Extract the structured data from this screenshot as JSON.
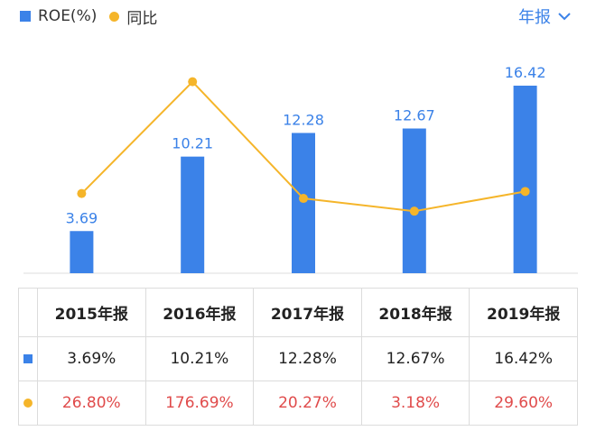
{
  "legend": {
    "roe_label": "ROE(%)",
    "yoy_label": "同比"
  },
  "period_selector": {
    "label": "年报",
    "icon": "chevron-down-icon"
  },
  "colors": {
    "bar": "#3b82e8",
    "line": "#f5b52a",
    "label": "#3b82e8",
    "negative_text": "#e04b4b",
    "grid": "#dcdcdc"
  },
  "chart_data": {
    "type": "bar",
    "categories": [
      "2015年报",
      "2016年报",
      "2017年报",
      "2018年报",
      "2019年报"
    ],
    "series": [
      {
        "name": "ROE(%)",
        "type": "bar",
        "values": [
          3.69,
          10.21,
          12.28,
          12.67,
          16.42
        ]
      },
      {
        "name": "同比",
        "type": "line",
        "values": [
          26.8,
          176.69,
          20.27,
          3.18,
          29.6
        ]
      }
    ],
    "xlabel": "",
    "ylabel": "",
    "ylim": [
      0,
      18.0
    ],
    "y2lim": [
      -80,
      250
    ],
    "grid": false,
    "legend": "top-left"
  },
  "table": {
    "headers": [
      "2015年报",
      "2016年报",
      "2017年报",
      "2018年报",
      "2019年报"
    ],
    "roe_row": [
      "3.69%",
      "10.21%",
      "12.28%",
      "12.67%",
      "16.42%"
    ],
    "yoy_row": [
      "26.80%",
      "176.69%",
      "20.27%",
      "3.18%",
      "29.60%"
    ]
  }
}
